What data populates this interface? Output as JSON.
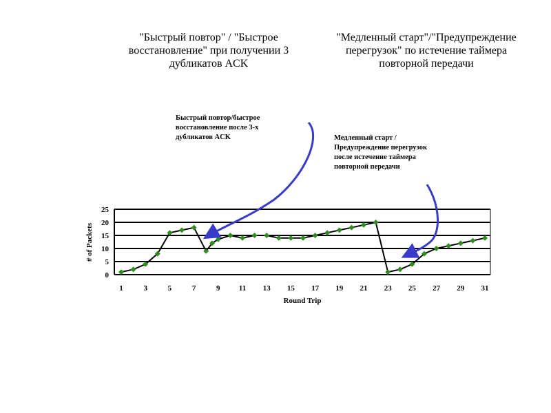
{
  "captions": {
    "left": "\"Быстрый повтор\" / \"Быстрое восстановление\" при получении 3 дубликатов ACK",
    "right": "\"Медленный старт\"/\"Предупреждение перегрузок\" по истечение таймера повторной передачи"
  },
  "callouts": {
    "left_lines": [
      "Быстрый повтор/быстрое",
      "восстановление после 3-х",
      "дубликатов   ACK"
    ],
    "right_lines": [
      "Медленный старт /",
      "Предупреждение перегрузок",
      "после истечение таймера",
      "повторной передачи"
    ]
  },
  "colors": {
    "line": "#000000",
    "marker": "#2e8b1e",
    "arrow": "#3a3ac8",
    "grid": "#000000"
  },
  "chart_data": {
    "type": "line",
    "title": "",
    "xlabel": "Round Trip",
    "ylabel": "# of Packets",
    "xlim": [
      1,
      31
    ],
    "ylim": [
      0,
      25
    ],
    "grid": true,
    "x_ticks": [
      1,
      3,
      5,
      7,
      9,
      11,
      13,
      15,
      17,
      19,
      21,
      23,
      25,
      27,
      29,
      31
    ],
    "y_ticks": [
      0,
      5,
      10,
      15,
      20,
      25
    ],
    "series": [
      {
        "x": [
          1,
          2,
          3,
          4,
          5,
          6,
          7,
          8,
          8.5,
          9,
          10,
          11,
          12,
          13,
          14,
          15,
          16,
          17,
          18,
          19,
          20,
          21,
          22,
          23,
          24,
          25,
          26,
          27,
          28,
          29,
          30,
          31
        ],
        "values": [
          1,
          2,
          4,
          8,
          16,
          17,
          18,
          9,
          12,
          13.5,
          15,
          14,
          15,
          15,
          14,
          14,
          14,
          15,
          16,
          17,
          18,
          19,
          20,
          1,
          2,
          4,
          8,
          10,
          11,
          12,
          13,
          14
        ]
      }
    ]
  }
}
